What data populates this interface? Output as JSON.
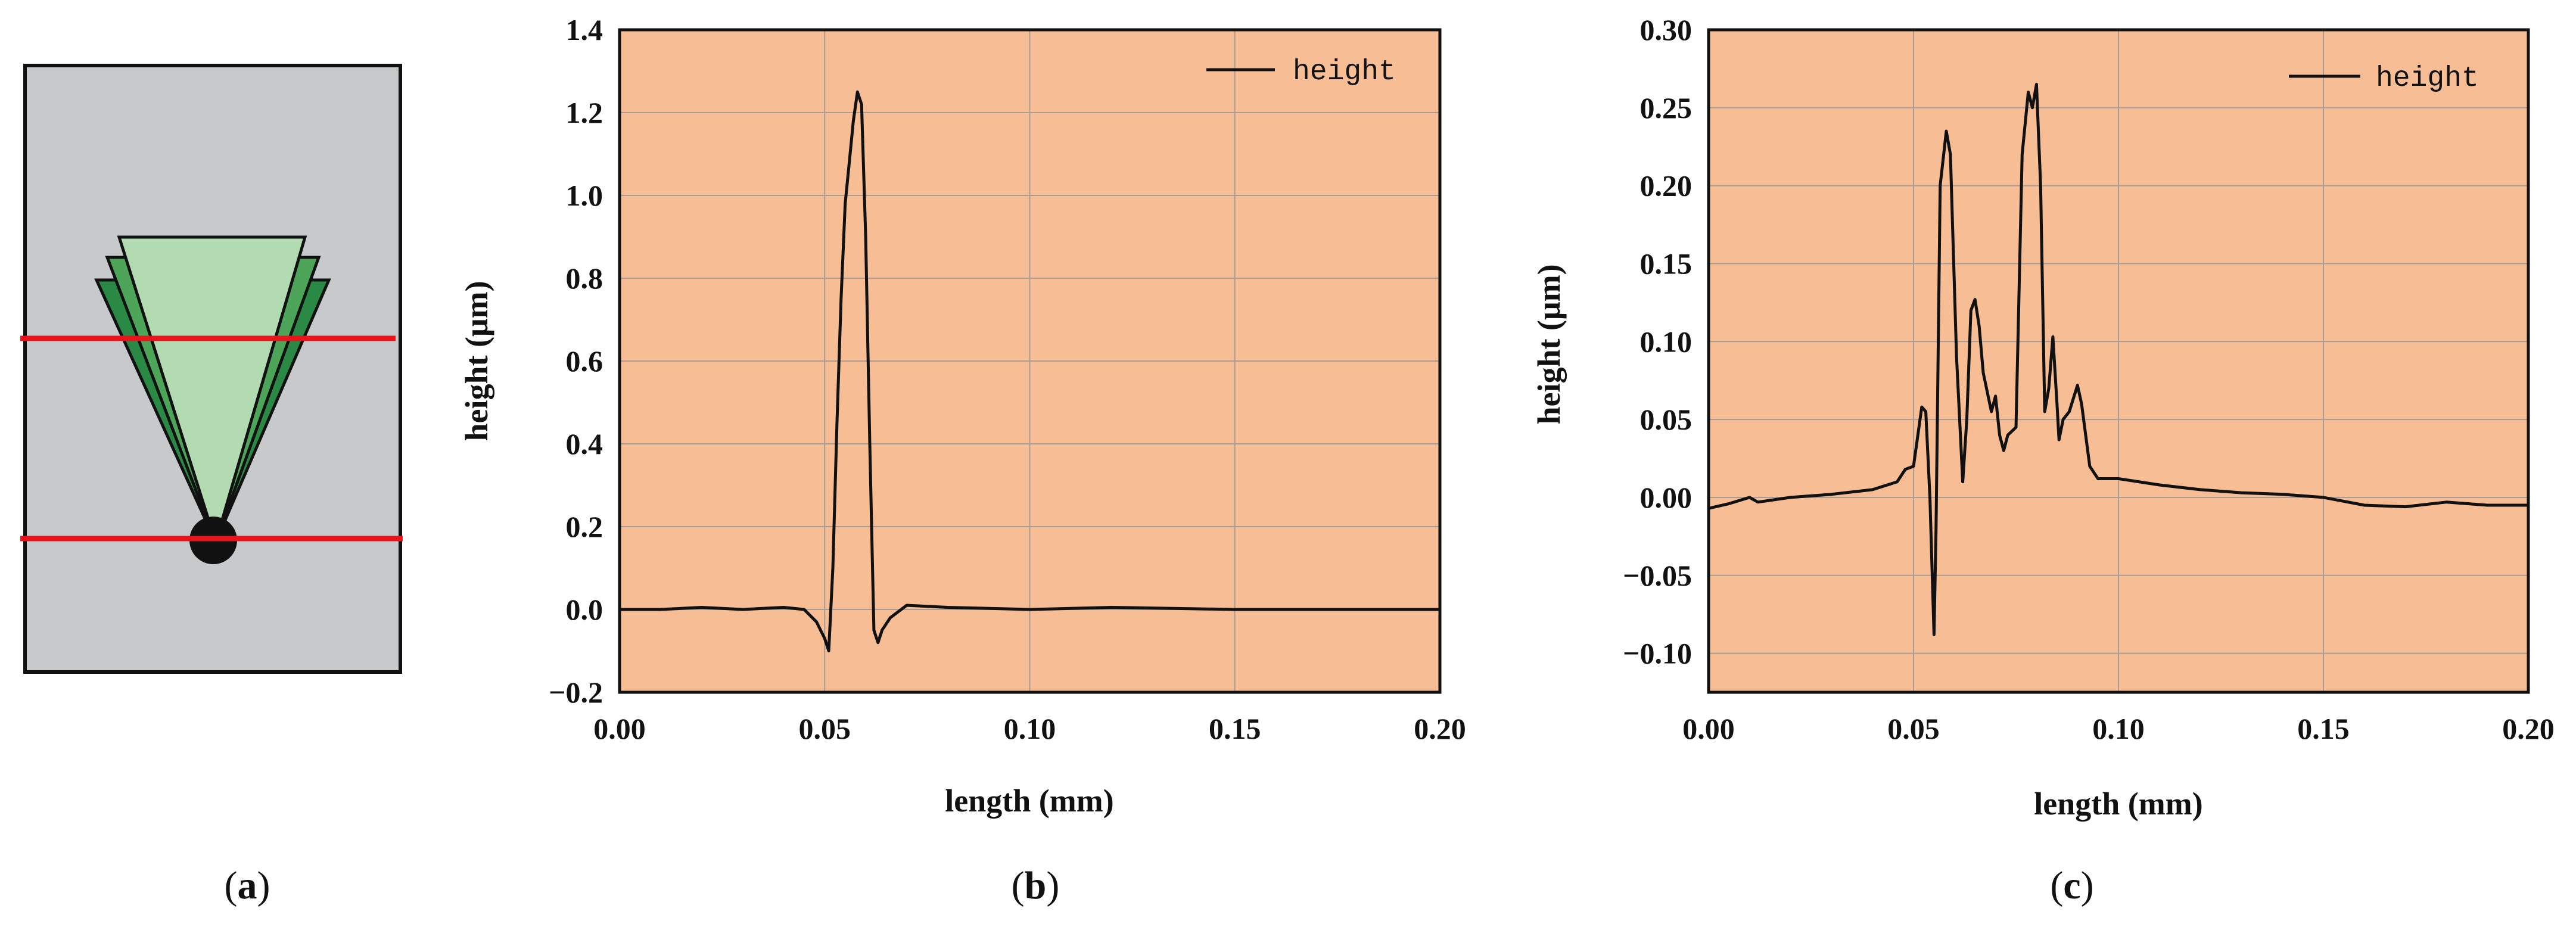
{
  "panels": [
    {
      "id": "a",
      "caption_open": "(",
      "caption_letter": "a",
      "caption_close": ")"
    },
    {
      "id": "b",
      "caption_open": "(",
      "caption_letter": "b",
      "caption_close": ")"
    },
    {
      "id": "c",
      "caption_open": "(",
      "caption_letter": "c",
      "caption_close": ")"
    }
  ],
  "colors": {
    "plot_bg": "#f7be95",
    "grid": "#a89c94",
    "line": "#111111",
    "schematic_bg": "#c8c9cb",
    "cut_line": "#e8141c",
    "triangle_light": "#b2dbb2",
    "triangle_mid": "#4da55a",
    "triangle_dark": "#2a8a45",
    "dot": "#111111"
  },
  "chart_data": [
    {
      "type": "line",
      "panel": "b",
      "xlabel": "length (mm)",
      "ylabel": "height (μm)",
      "xlim": [
        0.0,
        0.2
      ],
      "ylim": [
        -0.2,
        1.4
      ],
      "xticks": [
        0.0,
        0.05,
        0.1,
        0.15,
        0.2
      ],
      "xtick_labels": [
        "0.00",
        "0.05",
        "0.10",
        "0.15",
        "0.20"
      ],
      "yticks": [
        -0.2,
        0.0,
        0.2,
        0.4,
        0.6,
        0.8,
        1.0,
        1.2,
        1.4
      ],
      "ytick_labels": [
        "−0.2",
        "0.0",
        "0.2",
        "0.4",
        "0.6",
        "0.8",
        "1.0",
        "1.2",
        "1.4"
      ],
      "grid": true,
      "legend_position": "top-right",
      "series": [
        {
          "name": "height",
          "x": [
            0.0,
            0.01,
            0.02,
            0.03,
            0.04,
            0.045,
            0.048,
            0.05,
            0.051,
            0.052,
            0.053,
            0.054,
            0.055,
            0.056,
            0.057,
            0.058,
            0.059,
            0.06,
            0.061,
            0.062,
            0.063,
            0.064,
            0.066,
            0.07,
            0.08,
            0.1,
            0.12,
            0.15,
            0.18,
            0.2
          ],
          "y": [
            0.0,
            0.0,
            0.005,
            0.0,
            0.005,
            0.0,
            -0.03,
            -0.07,
            -0.1,
            0.1,
            0.45,
            0.75,
            0.98,
            1.08,
            1.18,
            1.25,
            1.22,
            0.9,
            0.4,
            -0.05,
            -0.08,
            -0.05,
            -0.02,
            0.01,
            0.005,
            0.0,
            0.005,
            0.0,
            0.0,
            0.0
          ]
        }
      ]
    },
    {
      "type": "line",
      "panel": "c",
      "xlabel": "length (mm)",
      "ylabel": "height (μm)",
      "xlim": [
        0.0,
        0.2
      ],
      "ylim": [
        -0.125,
        0.3
      ],
      "xticks": [
        0.0,
        0.05,
        0.1,
        0.15,
        0.2
      ],
      "xtick_labels": [
        "0.00",
        "0.05",
        "0.10",
        "0.15",
        "0.20"
      ],
      "yticks": [
        -0.1,
        -0.05,
        0.0,
        0.05,
        0.1,
        0.15,
        0.2,
        0.25,
        0.3
      ],
      "ytick_labels": [
        "−0.10",
        "−0.05",
        "0.00",
        "0.05",
        "0.10",
        "0.15",
        "0.20",
        "0.25",
        "0.30"
      ],
      "grid": true,
      "legend_position": "top-right",
      "series": [
        {
          "name": "height",
          "x": [
            0.0,
            0.005,
            0.01,
            0.012,
            0.02,
            0.03,
            0.04,
            0.046,
            0.048,
            0.05,
            0.052,
            0.053,
            0.054,
            0.055,
            0.0555,
            0.0565,
            0.058,
            0.059,
            0.0605,
            0.062,
            0.063,
            0.064,
            0.065,
            0.066,
            0.067,
            0.069,
            0.07,
            0.071,
            0.072,
            0.073,
            0.075,
            0.0765,
            0.078,
            0.079,
            0.08,
            0.081,
            0.082,
            0.083,
            0.084,
            0.085,
            0.0855,
            0.0865,
            0.088,
            0.09,
            0.091,
            0.093,
            0.095,
            0.1,
            0.11,
            0.12,
            0.13,
            0.14,
            0.15,
            0.16,
            0.17,
            0.18,
            0.19,
            0.2
          ],
          "y": [
            -0.007,
            -0.004,
            0.0,
            -0.003,
            0.0,
            0.002,
            0.005,
            0.01,
            0.018,
            0.02,
            0.058,
            0.055,
            0.0,
            -0.088,
            -0.02,
            0.2,
            0.235,
            0.22,
            0.09,
            0.01,
            0.05,
            0.12,
            0.127,
            0.11,
            0.08,
            0.055,
            0.065,
            0.04,
            0.03,
            0.04,
            0.045,
            0.22,
            0.26,
            0.25,
            0.265,
            0.2,
            0.055,
            0.07,
            0.103,
            0.06,
            0.037,
            0.05,
            0.055,
            0.072,
            0.06,
            0.02,
            0.012,
            0.012,
            0.008,
            0.005,
            0.003,
            0.002,
            0.0,
            -0.005,
            -0.006,
            -0.003,
            -0.005,
            -0.005
          ]
        }
      ]
    }
  ]
}
